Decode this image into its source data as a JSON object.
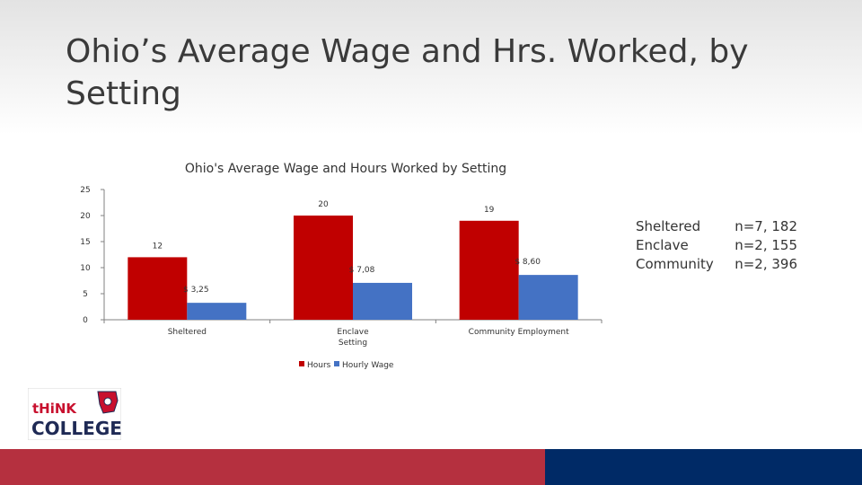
{
  "slide": {
    "title": "Ohio’s Average Wage and Hrs. Worked, by Setting"
  },
  "sample_sizes": [
    {
      "label": "Sheltered",
      "value": "n=7, 182"
    },
    {
      "label": "Enclave",
      "value": "n=2, 155"
    },
    {
      "label": "Community",
      "value": "n=2, 396"
    }
  ],
  "logo": {
    "text_line1": "tHiNK",
    "text_line2": "COLLEGE!"
  },
  "colors": {
    "hours": "#c00000",
    "hourly_wage": "#4472c4",
    "footer_left": "#b5303f",
    "footer_right": "#002a66"
  },
  "chart_data": {
    "type": "bar",
    "title": "Ohio's Average Wage and Hours Worked by Setting",
    "xlabel": "Setting",
    "ylabel": "",
    "ylim": [
      0,
      25
    ],
    "yticks": [
      "0",
      "5",
      "10",
      "15",
      "20",
      "25"
    ],
    "categories": [
      "Sheltered",
      "Enclave",
      "Community Employment"
    ],
    "series": [
      {
        "name": "Hours",
        "values": [
          12,
          20,
          19
        ],
        "labels": [
          "12",
          "20",
          "19"
        ]
      },
      {
        "name": "Hourly Wage",
        "values": [
          3.25,
          7.08,
          8.6
        ],
        "labels": [
          "$ 3,25",
          "$ 7,08",
          "$ 8,60"
        ]
      }
    ],
    "legend": "bottom",
    "grid": false
  }
}
